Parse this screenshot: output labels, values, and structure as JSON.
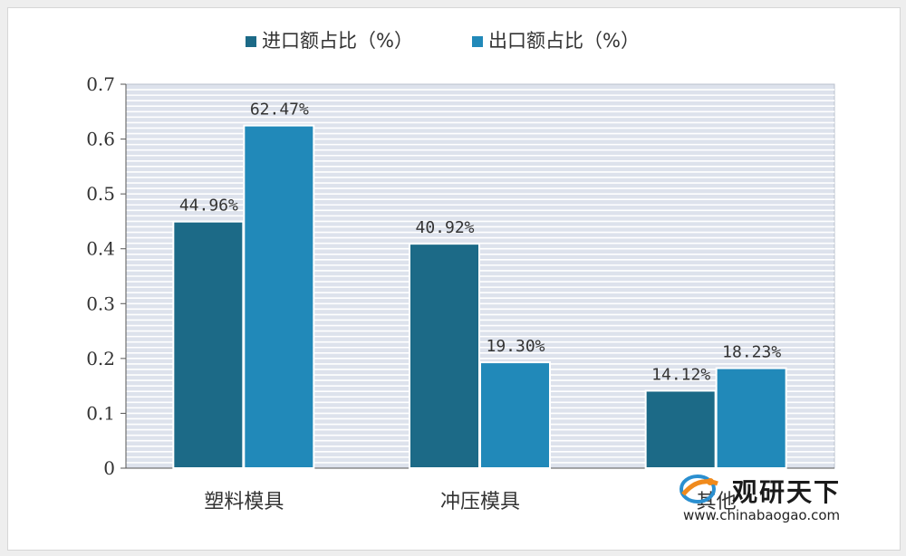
{
  "chart_data": {
    "type": "bar",
    "categories": [
      "塑料模具",
      "冲压模具",
      "其他"
    ],
    "series": [
      {
        "name": "进口额占比（%）",
        "values": [
          0.4496,
          0.4092,
          0.1412
        ],
        "labels": [
          "44.96%",
          "40.92%",
          "14.12%"
        ],
        "color": "#1c6a87"
      },
      {
        "name": "出口额占比（%）",
        "values": [
          0.6247,
          0.193,
          0.1823
        ],
        "labels": [
          "62.47%",
          "19.30%",
          "18.23%"
        ],
        "color": "#2189b9"
      }
    ],
    "ylim": [
      0,
      0.7
    ],
    "yticks": [
      0,
      0.1,
      0.2,
      0.3,
      0.4,
      0.5,
      0.6,
      0.7
    ],
    "ytick_labels": [
      "0",
      "0.1",
      "0.2",
      "0.3",
      "0.4",
      "0.5",
      "0.6",
      "0.7"
    ],
    "legend_position": "top-center",
    "grid": true,
    "plot_background": "#dde2ec",
    "grid_color": "#ffffff"
  },
  "watermark": {
    "brand": "观研天下",
    "url": "www.chinabaogao.com"
  }
}
